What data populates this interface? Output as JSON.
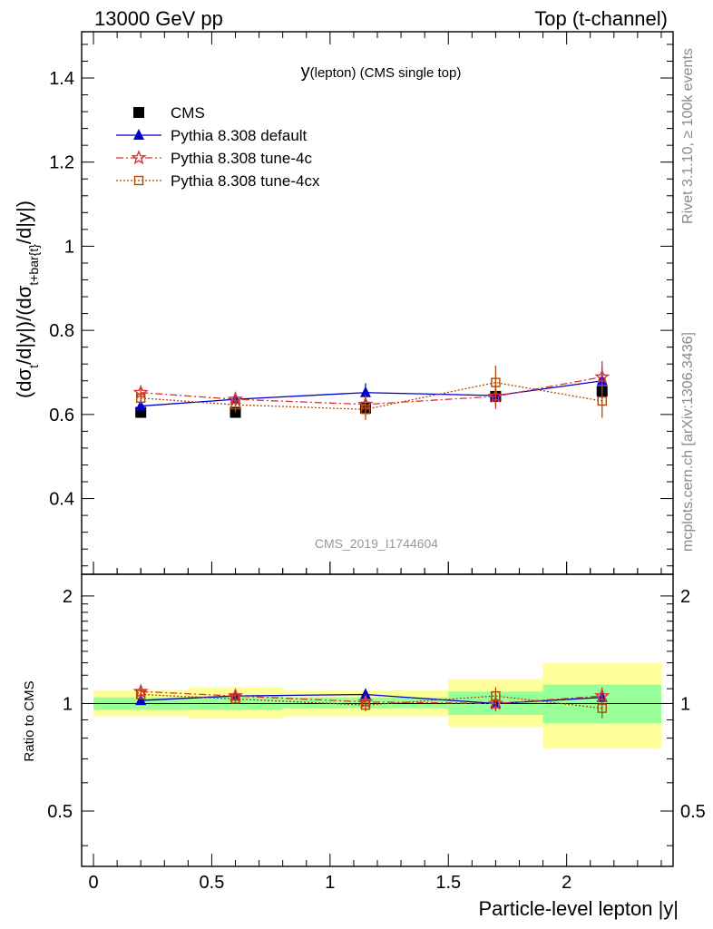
{
  "header": {
    "left": "13000 GeV pp",
    "right": "Top (t-channel)"
  },
  "side_labels": {
    "rivet": "Rivet 3.1.10, ≥ 100k events",
    "mcplots": "mcplots.cern.ch [arXiv:1306.3436]"
  },
  "chart_data": {
    "type": "scatter",
    "title": "y(lepton) (CMS single top)",
    "watermark": "CMS_2019_I1744604",
    "xlabel": "Particle-level lepton |y|",
    "ylabel": "(dσt/d|y|)/(dσt+bar{t}/d|y|)",
    "ratio_ylabel": "Ratio to CMS",
    "xlim": [
      -0.05,
      2.45
    ],
    "ylim": [
      0.22,
      1.51
    ],
    "ratio_ylim": [
      0.35,
      2.3
    ],
    "x_ticks": [
      "0",
      "0.5",
      "1",
      "1.5",
      "2"
    ],
    "y_ticks": [
      "0.4",
      "0.6",
      "0.8",
      "1",
      "1.2",
      "1.4"
    ],
    "ratio_ticks": [
      "0.5",
      "1",
      "2"
    ],
    "legend_position": "top-left",
    "bins": [
      {
        "x": 0.2,
        "lo": 0.0,
        "hi": 0.4,
        "green": [
          0.96,
          1.04
        ],
        "yellow": [
          0.92,
          1.09
        ]
      },
      {
        "x": 0.6,
        "lo": 0.4,
        "hi": 0.8,
        "green": [
          0.96,
          1.05
        ],
        "yellow": [
          0.91,
          1.11
        ]
      },
      {
        "x": 1.15,
        "lo": 0.8,
        "hi": 1.5,
        "green": [
          0.97,
          1.04
        ],
        "yellow": [
          0.92,
          1.09
        ]
      },
      {
        "x": 1.7,
        "lo": 1.5,
        "hi": 1.9,
        "green": [
          0.93,
          1.08
        ],
        "yellow": [
          0.86,
          1.17
        ]
      },
      {
        "x": 2.15,
        "lo": 1.9,
        "hi": 2.4,
        "green": [
          0.88,
          1.13
        ],
        "yellow": [
          0.75,
          1.3
        ]
      }
    ],
    "series": [
      {
        "name": "CMS",
        "color": "#000000",
        "marker": "square",
        "line": "none",
        "x": [
          0.2,
          0.6,
          1.15,
          1.7,
          2.15
        ],
        "y": [
          0.605,
          0.605,
          0.615,
          0.643,
          0.655
        ],
        "err": [
          0.012,
          0.008,
          0.012,
          0.012,
          0.014
        ],
        "ratio": [
          1.0,
          1.0,
          1.0,
          1.0,
          1.0
        ],
        "ratio_err": [
          0.0,
          0.0,
          0.0,
          0.0,
          0.0
        ]
      },
      {
        "name": "Pythia 8.308 default",
        "color": "#0000cc",
        "marker": "triangle",
        "line": "solid",
        "x": [
          0.2,
          0.6,
          1.15,
          1.7,
          2.15
        ],
        "y": [
          0.62,
          0.636,
          0.652,
          0.645,
          0.68
        ],
        "err": [
          0.01,
          0.015,
          0.022,
          0.025,
          0.035
        ],
        "ratio": [
          1.02,
          1.05,
          1.06,
          1.0,
          1.04
        ],
        "ratio_err": [
          0.02,
          0.03,
          0.04,
          0.04,
          0.05
        ]
      },
      {
        "name": "Pythia 8.308 tune-4c",
        "color": "#dd3333",
        "marker": "star",
        "line": "dashdot",
        "x": [
          0.2,
          0.6,
          1.15,
          1.7,
          2.15
        ],
        "y": [
          0.652,
          0.636,
          0.624,
          0.643,
          0.689
        ],
        "err": [
          0.015,
          0.018,
          0.022,
          0.03,
          0.038
        ],
        "ratio": [
          1.08,
          1.05,
          1.01,
          1.0,
          1.05
        ],
        "ratio_err": [
          0.03,
          0.03,
          0.03,
          0.05,
          0.06
        ]
      },
      {
        "name": "Pythia 8.308 tune-4cx",
        "color": "#b34700",
        "marker": "open-square",
        "line": "dotted",
        "x": [
          0.2,
          0.6,
          1.15,
          1.7,
          2.15
        ],
        "y": [
          0.639,
          0.623,
          0.612,
          0.676,
          0.632
        ],
        "err": [
          0.014,
          0.018,
          0.025,
          0.04,
          0.04
        ],
        "ratio": [
          1.06,
          1.03,
          0.99,
          1.05,
          0.97
        ],
        "ratio_err": [
          0.03,
          0.03,
          0.04,
          0.06,
          0.06
        ]
      }
    ]
  }
}
